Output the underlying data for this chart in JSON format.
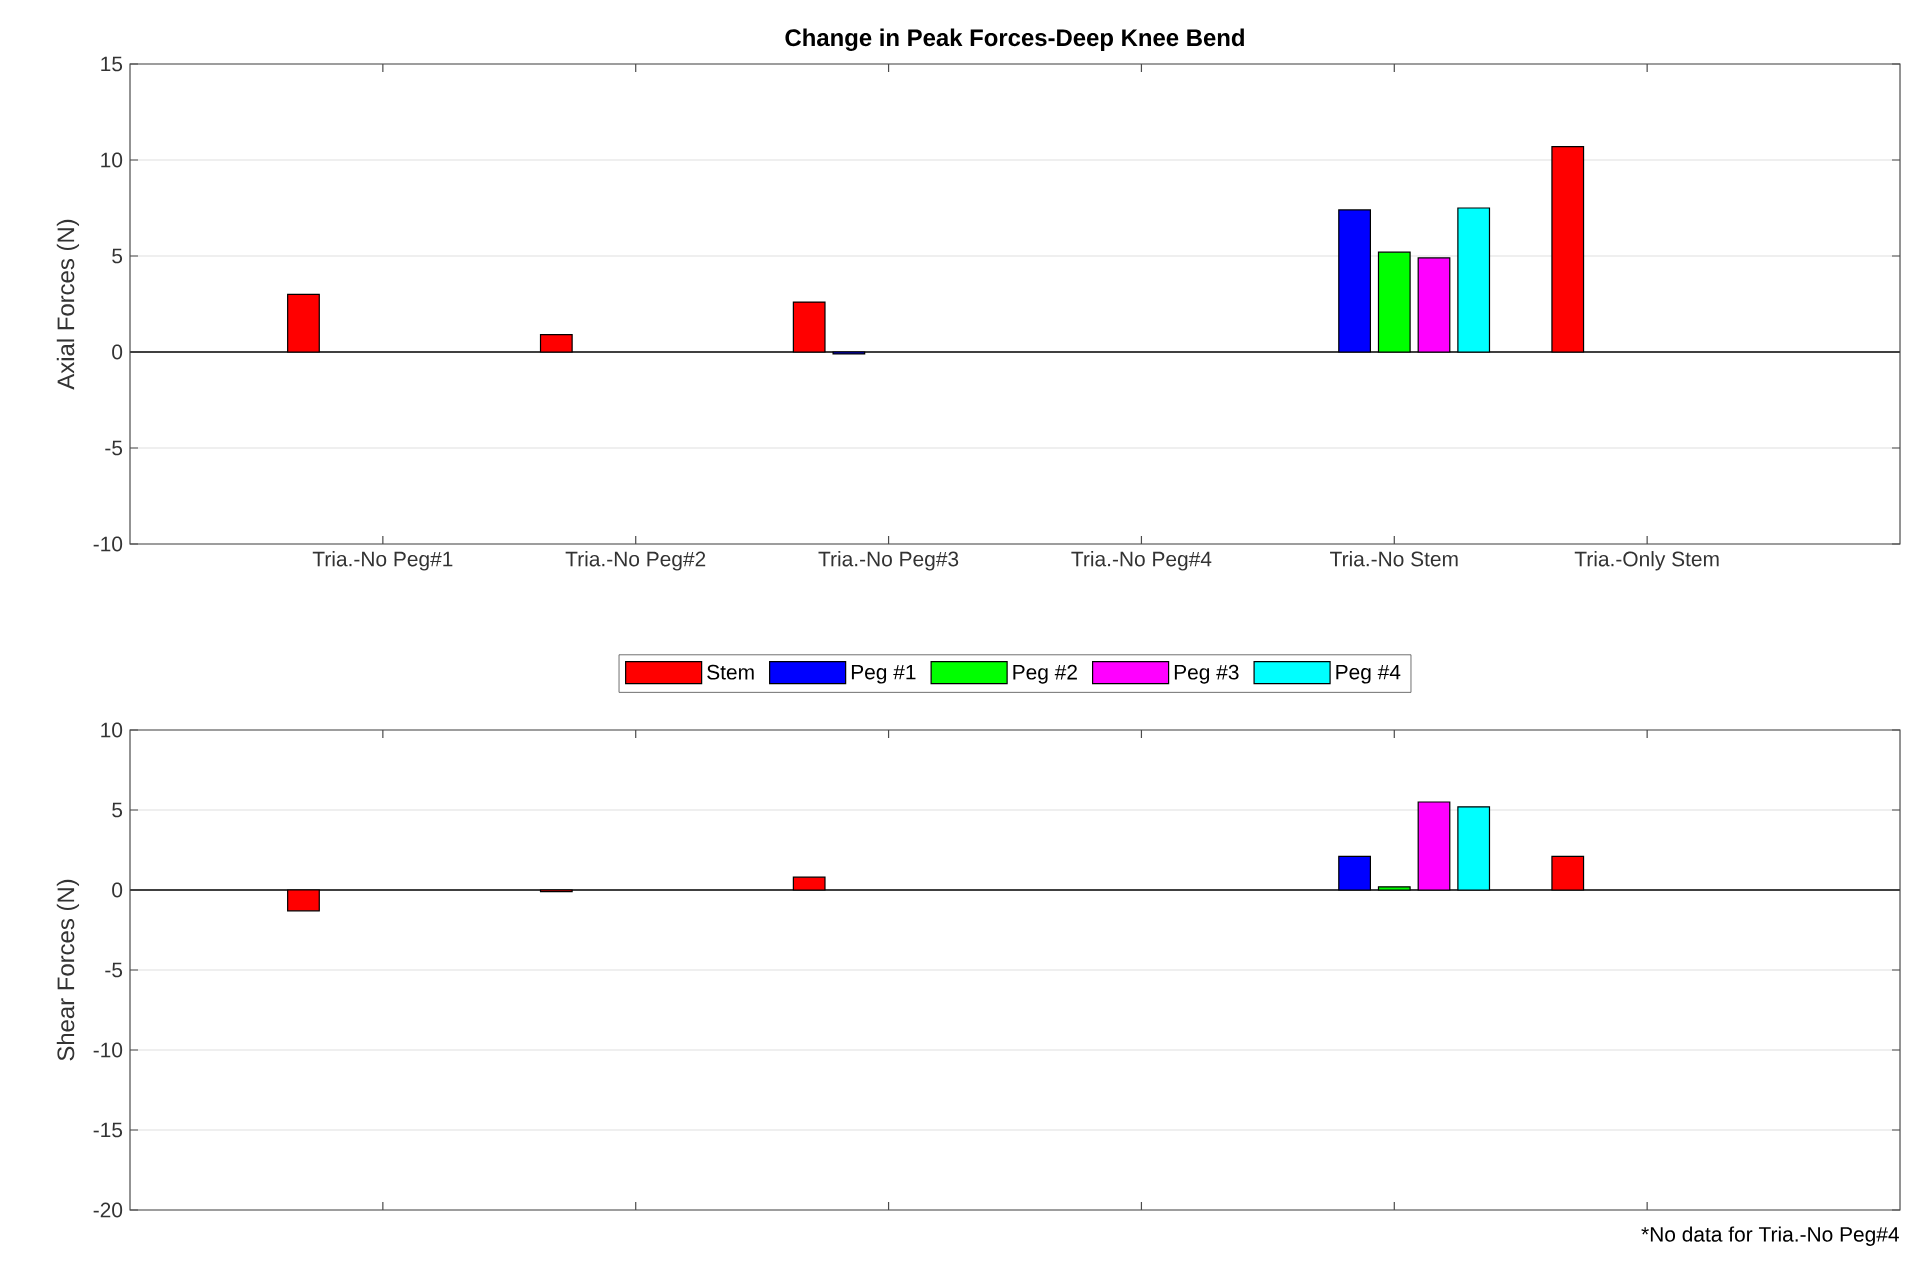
{
  "chart_data": [
    {
      "type": "bar",
      "title": "Change in Peak Forces-Deep Knee Bend",
      "ylabel": "Axial Forces (N)",
      "categories": [
        "Tria.-No Peg#1",
        "Tria.-No Peg#2",
        "Tria.-No Peg#3",
        "Tria.-No Peg#4",
        "Tria.-No Stem",
        "Tria.-Only Stem"
      ],
      "series": [
        {
          "name": "Stem",
          "color": "#ff0000",
          "values": [
            3.0,
            0.9,
            2.6,
            null,
            null,
            10.7
          ]
        },
        {
          "name": "Peg #1",
          "color": "#0000ff",
          "values": [
            null,
            null,
            -0.1,
            null,
            7.4,
            null
          ]
        },
        {
          "name": "Peg #2",
          "color": "#00ff00",
          "values": [
            null,
            null,
            null,
            null,
            5.2,
            null
          ]
        },
        {
          "name": "Peg #3",
          "color": "#ff00ff",
          "values": [
            null,
            null,
            null,
            null,
            4.9,
            null
          ]
        },
        {
          "name": "Peg #4",
          "color": "#00ffff",
          "values": [
            null,
            null,
            null,
            null,
            7.5,
            null
          ]
        }
      ],
      "ylim": [
        -10,
        15
      ],
      "yticks": [
        -10,
        -5,
        0,
        5,
        10,
        15
      ],
      "grid": "y",
      "legend": "bottom",
      "ref_lines": [
        {
          "axis": "y",
          "value": 0,
          "color": "#404040"
        }
      ]
    },
    {
      "type": "bar",
      "ylabel": "Shear Forces (N)",
      "categories": [
        null,
        null,
        null,
        null,
        null,
        null
      ],
      "series": [
        {
          "color": "#ff0000",
          "values": [
            -1.3,
            -0.1,
            0.8,
            null,
            null,
            2.1
          ]
        },
        {
          "color": "#0000ff",
          "values": [
            null,
            null,
            null,
            null,
            2.1,
            null
          ]
        },
        {
          "color": "#00ff00",
          "values": [
            null,
            null,
            null,
            null,
            0.2,
            null
          ]
        },
        {
          "color": "#ff00ff",
          "values": [
            null,
            null,
            null,
            null,
            5.5,
            null
          ]
        },
        {
          "color": "#00ffff",
          "values": [
            null,
            null,
            null,
            null,
            5.2,
            null
          ]
        }
      ],
      "ylim": [
        -20,
        10
      ],
      "yticks": [
        -20,
        -15,
        -10,
        -5,
        0,
        5,
        10
      ],
      "grid": "y",
      "tick_labels": "y",
      "ref_lines": [
        {
          "axis": "y",
          "value": 0,
          "color": "#404040"
        }
      ],
      "annotations": [
        "*No data for Tria.-No Peg#4"
      ]
    }
  ]
}
